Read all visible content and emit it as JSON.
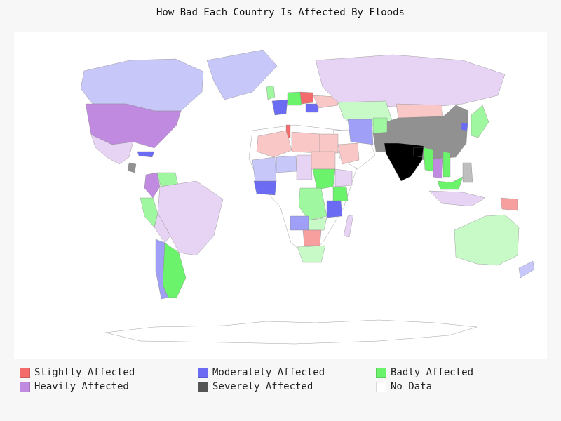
{
  "title": "How Bad Each Country Is Affected By Floods",
  "legend": [
    {
      "label": "Slightly Affected",
      "color": "#f36b6b"
    },
    {
      "label": "Moderately Affected",
      "color": "#6b6bf3"
    },
    {
      "label": "Badly Affected",
      "color": "#6bf36b"
    },
    {
      "label": "Heavily Affected",
      "color": "#c08ae0"
    },
    {
      "label": "Severely Affected",
      "color": "#555555"
    },
    {
      "label": "No Data",
      "color": "#ffffff"
    }
  ],
  "chart_data": {
    "type": "choropleth",
    "title": "How Bad Each Country Is Affected By Floods",
    "categories": [
      "Slightly Affected",
      "Moderately Affected",
      "Badly Affected",
      "Heavily Affected",
      "Severely Affected",
      "No Data"
    ],
    "regions": [
      {
        "name": "India",
        "level": "Severely Affected",
        "intensity": "high"
      },
      {
        "name": "Bangladesh",
        "level": "Severely Affected",
        "intensity": "high"
      },
      {
        "name": "Nepal",
        "level": "Severely Affected",
        "intensity": "medium"
      },
      {
        "name": "China",
        "level": "Severely Affected",
        "intensity": "medium"
      },
      {
        "name": "Pakistan",
        "level": "Severely Affected",
        "intensity": "medium"
      },
      {
        "name": "North Korea",
        "level": "Severely Affected",
        "intensity": "medium"
      },
      {
        "name": "Guatemala",
        "level": "Severely Affected",
        "intensity": "medium"
      },
      {
        "name": "Philippines",
        "level": "Severely Affected",
        "intensity": "light"
      },
      {
        "name": "Mongolia",
        "level": "Slightly Affected",
        "intensity": "light"
      },
      {
        "name": "Poland",
        "level": "Slightly Affected",
        "intensity": "high"
      },
      {
        "name": "Ukraine",
        "level": "Slightly Affected",
        "intensity": "light"
      },
      {
        "name": "Tunisia",
        "level": "Slightly Affected",
        "intensity": "high"
      },
      {
        "name": "Algeria",
        "level": "Slightly Affected",
        "intensity": "light"
      },
      {
        "name": "Libya",
        "level": "Slightly Affected",
        "intensity": "light"
      },
      {
        "name": "Egypt",
        "level": "Slightly Affected",
        "intensity": "light"
      },
      {
        "name": "Sudan",
        "level": "Slightly Affected",
        "intensity": "light"
      },
      {
        "name": "Saudi Arabia",
        "level": "Slightly Affected",
        "intensity": "light"
      },
      {
        "name": "Zimbabwe",
        "level": "Slightly Affected",
        "intensity": "medium"
      },
      {
        "name": "Papua New Guinea",
        "level": "Slightly Affected",
        "intensity": "medium"
      },
      {
        "name": "France",
        "level": "Moderately Affected",
        "intensity": "high"
      },
      {
        "name": "Romania",
        "level": "Moderately Affected",
        "intensity": "high"
      },
      {
        "name": "Iran",
        "level": "Moderately Affected",
        "intensity": "medium"
      },
      {
        "name": "Cuba",
        "level": "Moderately Affected",
        "intensity": "high"
      },
      {
        "name": "Tanzania",
        "level": "Moderately Affected",
        "intensity": "high"
      },
      {
        "name": "Angola",
        "level": "Moderately Affected",
        "intensity": "medium"
      },
      {
        "name": "Nigeria",
        "level": "Moderately Affected",
        "intensity": "high"
      },
      {
        "name": "Mali",
        "level": "Moderately Affected",
        "intensity": "light"
      },
      {
        "name": "Niger",
        "level": "Moderately Affected",
        "intensity": "light"
      },
      {
        "name": "Chile",
        "level": "Moderately Affected",
        "intensity": "medium"
      },
      {
        "name": "Canada",
        "level": "Moderately Affected",
        "intensity": "light"
      },
      {
        "name": "South Korea",
        "level": "Moderately Affected",
        "intensity": "high"
      },
      {
        "name": "New Zealand",
        "level": "Moderately Affected",
        "intensity": "light"
      },
      {
        "name": "Germany",
        "level": "Badly Affected",
        "intensity": "high"
      },
      {
        "name": "United Kingdom",
        "level": "Badly Affected",
        "intensity": "medium"
      },
      {
        "name": "Japan",
        "level": "Badly Affected",
        "intensity": "medium"
      },
      {
        "name": "Argentina",
        "level": "Badly Affected",
        "intensity": "high"
      },
      {
        "name": "Peru",
        "level": "Badly Affected",
        "intensity": "medium"
      },
      {
        "name": "Venezuela",
        "level": "Badly Affected",
        "intensity": "medium"
      },
      {
        "name": "Myanmar",
        "level": "Badly Affected",
        "intensity": "high"
      },
      {
        "name": "Vietnam",
        "level": "Badly Affected",
        "intensity": "high"
      },
      {
        "name": "Malaysia",
        "level": "Badly Affected",
        "intensity": "high"
      },
      {
        "name": "South Sudan",
        "level": "Badly Affected",
        "intensity": "high"
      },
      {
        "name": "Kenya",
        "level": "Badly Affected",
        "intensity": "high"
      },
      {
        "name": "DR Congo",
        "level": "Badly Affected",
        "intensity": "medium"
      },
      {
        "name": "Kazakhstan",
        "level": "Badly Affected",
        "intensity": "light"
      },
      {
        "name": "Afghanistan",
        "level": "Badly Affected",
        "intensity": "medium"
      },
      {
        "name": "Australia",
        "level": "Badly Affected",
        "intensity": "light"
      },
      {
        "name": "South Africa",
        "level": "Badly Affected",
        "intensity": "light"
      },
      {
        "name": "Zambia",
        "level": "Badly Affected",
        "intensity": "light"
      },
      {
        "name": "United States",
        "level": "Heavily Affected",
        "intensity": "high"
      },
      {
        "name": "Mexico",
        "level": "Heavily Affected",
        "intensity": "light"
      },
      {
        "name": "Brazil",
        "level": "Heavily Affected",
        "intensity": "light"
      },
      {
        "name": "Colombia",
        "level": "Heavily Affected",
        "intensity": "high"
      },
      {
        "name": "Bolivia",
        "level": "Heavily Affected",
        "intensity": "light"
      },
      {
        "name": "Russia",
        "level": "Heavily Affected",
        "intensity": "light"
      },
      {
        "name": "Thailand",
        "level": "Heavily Affected",
        "intensity": "high"
      },
      {
        "name": "Indonesia",
        "level": "Heavily Affected",
        "intensity": "light"
      },
      {
        "name": "Greenland",
        "level": "Moderately Affected",
        "intensity": "light"
      },
      {
        "name": "Ethiopia",
        "level": "Heavily Affected",
        "intensity": "light"
      },
      {
        "name": "Madagascar",
        "level": "Heavily Affected",
        "intensity": "light"
      },
      {
        "name": "Chad",
        "level": "Heavily Affected",
        "intensity": "light"
      }
    ]
  }
}
